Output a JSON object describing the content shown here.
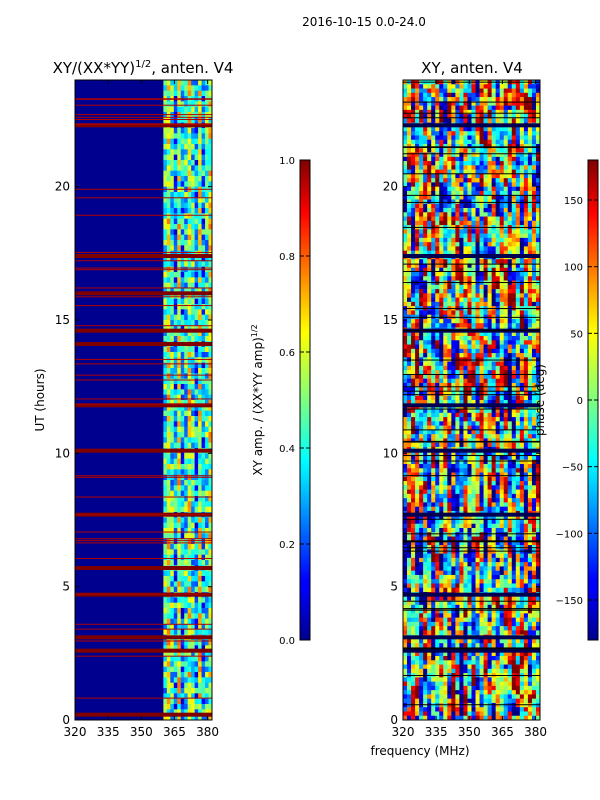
{
  "figure_title": "2016-10-15 0.0-24.0",
  "colors": {
    "stripe_red": "#800000",
    "background_blue": "#00008f"
  },
  "chart_data": [
    {
      "type": "heatmap",
      "title": "XY/(XX*YY)",
      "title_exponent": "1/2",
      "title_suffix": ", anten. V4",
      "xlabel": "",
      "ylabel": "UT (hours)",
      "xlim": [
        320,
        382
      ],
      "ylim": [
        0,
        24
      ],
      "xticks": [
        "320",
        "335",
        "350",
        "365",
        "380"
      ],
      "xtick_values": [
        320,
        335,
        350,
        365,
        380
      ],
      "yticks": [
        "0",
        "5",
        "10",
        "15",
        "20"
      ],
      "ytick_values": [
        0,
        5,
        10,
        15,
        20
      ],
      "active_band_mhz": [
        360,
        382
      ],
      "saturated_hours": [
        0.2,
        2.6,
        3.1,
        4.7,
        5.7,
        7.7,
        10.1,
        11.8,
        14.1,
        14.6,
        16.0,
        17.4,
        22.3
      ],
      "colorbar": {
        "label": "XY amp. / (XX*YY amp)",
        "label_exponent": "1/2",
        "range": [
          0.0,
          1.0
        ],
        "ticks": [
          "0.0",
          "0.2",
          "0.4",
          "0.6",
          "0.8",
          "1.0"
        ],
        "tick_values": [
          0.0,
          0.2,
          0.4,
          0.6,
          0.8,
          1.0
        ]
      }
    },
    {
      "type": "heatmap",
      "title": "XY, anten. V4",
      "xlabel": "frequency (MHz)",
      "ylabel": "",
      "xlim": [
        320,
        382
      ],
      "ylim": [
        0,
        24
      ],
      "xticks": [
        "320",
        "335",
        "350",
        "365",
        "380"
      ],
      "xtick_values": [
        320,
        335,
        350,
        365,
        380
      ],
      "yticks": [
        "0",
        "5",
        "10",
        "15",
        "20"
      ],
      "ytick_values": [
        0,
        5,
        10,
        15,
        20
      ],
      "flagged_hours": [
        2.6,
        3.1,
        4.7,
        7.7,
        10.1,
        11.8,
        14.6,
        17.4,
        22.3
      ],
      "colorbar": {
        "label": "phase (deg)",
        "range": [
          -180,
          180
        ],
        "ticks": [
          "−150",
          "−100",
          "−50",
          "0",
          "50",
          "100",
          "150"
        ],
        "tick_values": [
          -150,
          -100,
          -50,
          0,
          50,
          100,
          150
        ]
      }
    }
  ]
}
